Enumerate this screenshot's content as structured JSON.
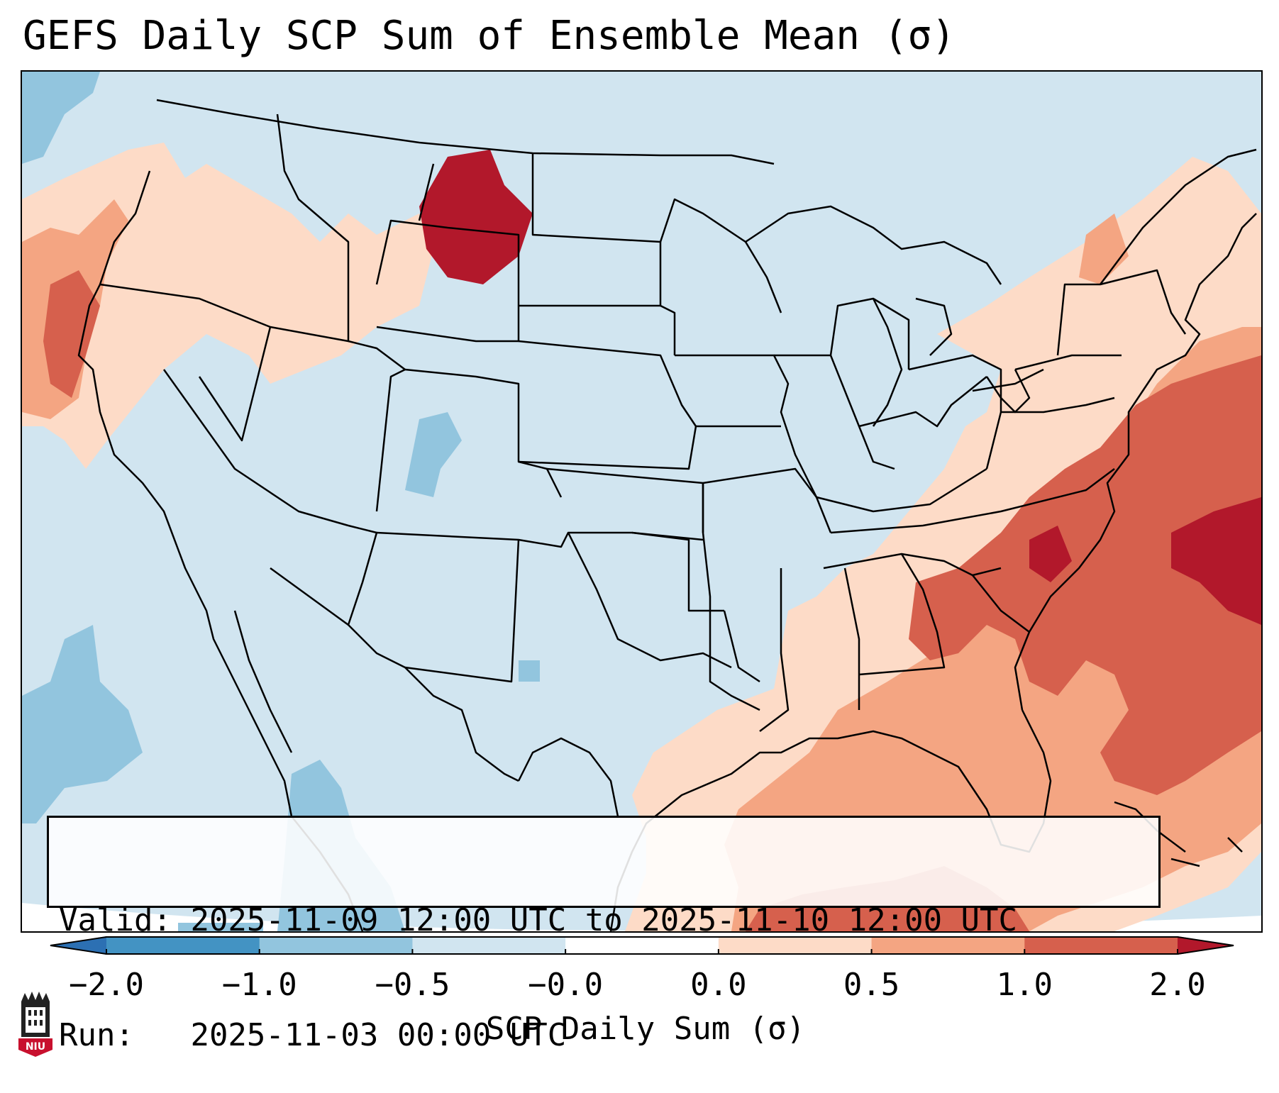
{
  "title": "GEFS Daily SCP Sum of Ensemble Mean (σ)",
  "info": {
    "valid_label": "Valid:",
    "valid_value": "2025-11-09 12:00 UTC to 2025-11-10 12:00 UTC",
    "run_label": "Run:",
    "run_value": "2025-11-03 00:00 UTC"
  },
  "colorbar": {
    "label": "SCP Daily Sum (σ)",
    "ticks": [
      "−2.0",
      "−1.0",
      "−0.5",
      "−0.0",
      "0.0",
      "0.5",
      "1.0",
      "2.0"
    ],
    "bins": [
      {
        "color": "#2c70b3"
      },
      {
        "color": "#4393c3"
      },
      {
        "color": "#92c5de"
      },
      {
        "color": "#d1e5f0"
      },
      {
        "color": "#ffffff"
      },
      {
        "color": "#fddbc7"
      },
      {
        "color": "#f4a582"
      },
      {
        "color": "#d6604d"
      },
      {
        "color": "#b2182b"
      }
    ]
  },
  "logo": {
    "text": "NIU"
  },
  "colors": {
    "background_field": "#d1e5f0",
    "border": "#000000"
  }
}
